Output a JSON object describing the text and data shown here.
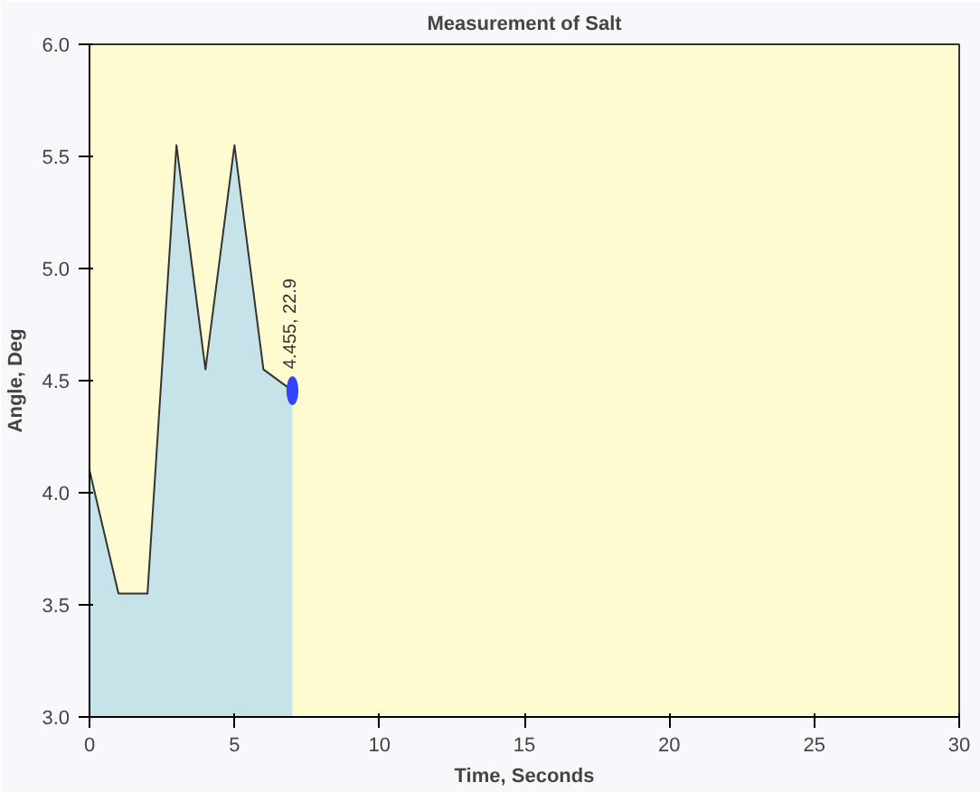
{
  "chart_data": {
    "type": "area",
    "title": "Measurement of Salt",
    "xlabel": "Time, Seconds",
    "ylabel": "Angle, Deg",
    "x": [
      0,
      1,
      2,
      3,
      4,
      5,
      6,
      7
    ],
    "series": [
      {
        "color": "#bfe0ea",
        "values": [
          4.1,
          3.55,
          3.55,
          5.55,
          4.55,
          5.55,
          4.55,
          4.455
        ]
      },
      {
        "type": "scatter",
        "marker": "circle",
        "color": "#3344ff",
        "x": [
          7
        ],
        "values": [
          4.455
        ]
      }
    ],
    "annotations": [
      {
        "text": "4.455, 22.9",
        "x": 7,
        "y": 4.455
      }
    ],
    "xlim": [
      0,
      30
    ],
    "ylim": [
      3.0,
      6.0
    ],
    "xticks": [
      0,
      5,
      10,
      15,
      20,
      25,
      30
    ],
    "yticks": [
      {
        "value": 3.0,
        "label": "3.0"
      },
      {
        "value": 3.5,
        "label": "3.5"
      },
      {
        "value": 4.0,
        "label": "4.0"
      },
      {
        "value": 4.5,
        "label": "4.5"
      },
      {
        "value": 5.0,
        "label": "5.0"
      },
      {
        "value": 5.5,
        "label": "5.5"
      },
      {
        "value": 6.0,
        "label": "6.0"
      }
    ],
    "grid": false
  }
}
